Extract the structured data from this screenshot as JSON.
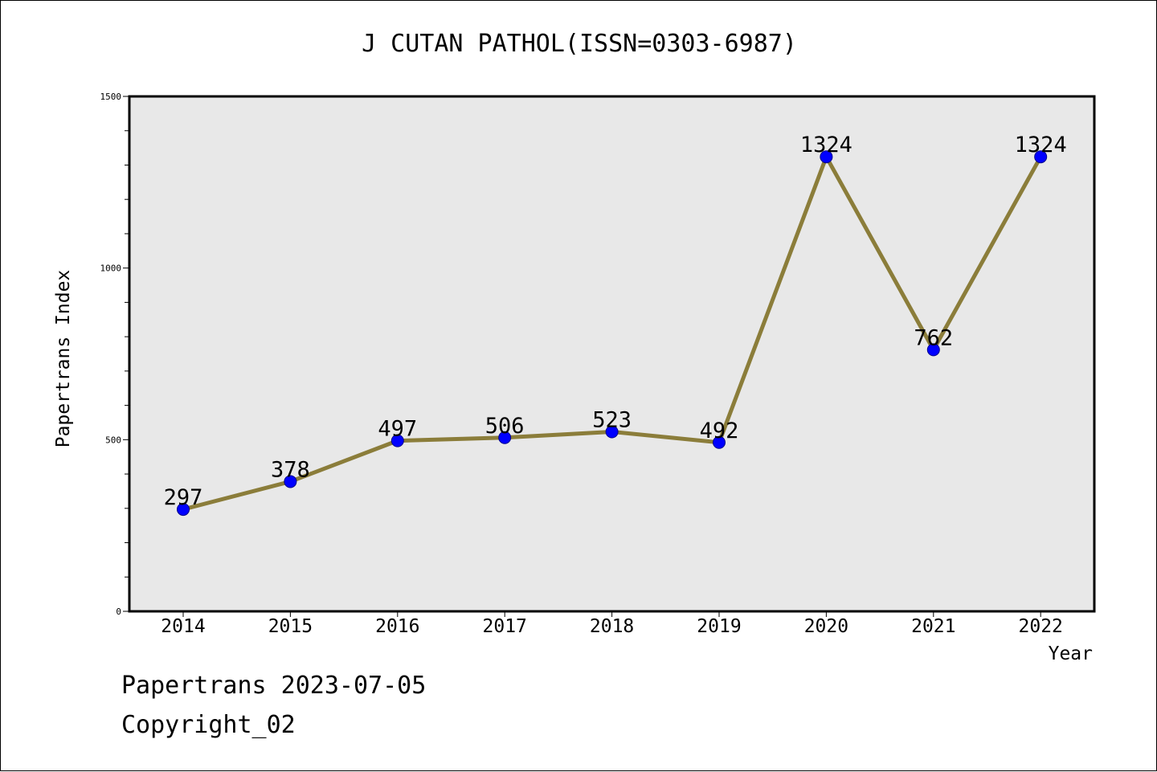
{
  "page": {
    "footer_line1": "Papertrans 2023-07-05",
    "footer_line2": "Copyright_02"
  },
  "chart_data": {
    "type": "line",
    "title": "J CUTAN PATHOL(ISSN=0303-6987)",
    "xlabel": "Year",
    "ylabel": "Papertrans Index",
    "categories": [
      "2014",
      "2015",
      "2016",
      "2017",
      "2018",
      "2019",
      "2020",
      "2021",
      "2022"
    ],
    "series": [
      {
        "values": [
          297,
          378,
          497,
          506,
          523,
          492,
          1324,
          762,
          1324
        ],
        "line_color": "#8b7d3a",
        "marker_color": "#0000ff"
      }
    ],
    "ylim": [
      0,
      1500
    ],
    "y_ticks_labeled": [
      0,
      500,
      1000,
      1500
    ],
    "y_minor_step": 100,
    "grid": false,
    "plot_background": "#e8e8e8",
    "data_labels": true
  }
}
